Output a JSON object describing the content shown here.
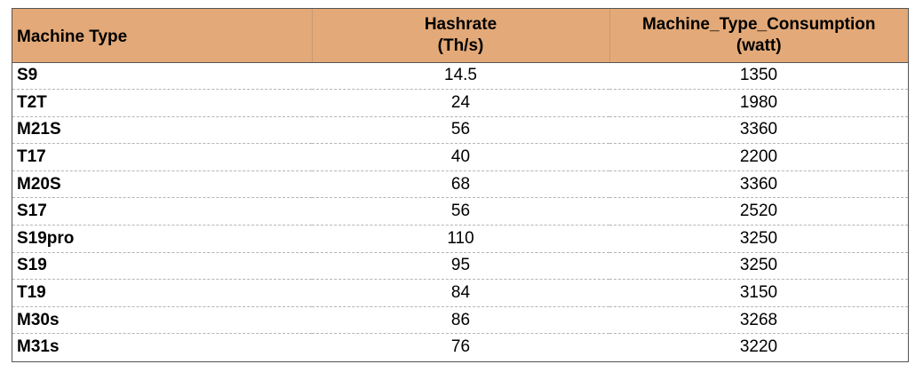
{
  "table": {
    "headers": {
      "machine_type": "Machine Type",
      "hashrate_line1": "Hashrate",
      "hashrate_line2": "(Th/s)",
      "consumption_line1": "Machine_Type_Consumption",
      "consumption_line2": "(watt)"
    },
    "rows": [
      {
        "machine": "S9",
        "hashrate": "14.5",
        "consumption": "1350"
      },
      {
        "machine": "T2T",
        "hashrate": "24",
        "consumption": "1980"
      },
      {
        "machine": "M21S",
        "hashrate": "56",
        "consumption": "3360"
      },
      {
        "machine": "T17",
        "hashrate": "40",
        "consumption": "2200"
      },
      {
        "machine": "M20S",
        "hashrate": "68",
        "consumption": "3360"
      },
      {
        "machine": "S17",
        "hashrate": "56",
        "consumption": "2520"
      },
      {
        "machine": "S19pro",
        "hashrate": "110",
        "consumption": "3250"
      },
      {
        "machine": "S19",
        "hashrate": "95",
        "consumption": "3250"
      },
      {
        "machine": "T19",
        "hashrate": "84",
        "consumption": "3150"
      },
      {
        "machine": "M30s",
        "hashrate": "86",
        "consumption": "3268"
      },
      {
        "machine": "M31s",
        "hashrate": "76",
        "consumption": "3220"
      }
    ]
  },
  "colors": {
    "header_background": "#e3a978",
    "row_divider": "#b5b5b5",
    "border": "#555555"
  }
}
